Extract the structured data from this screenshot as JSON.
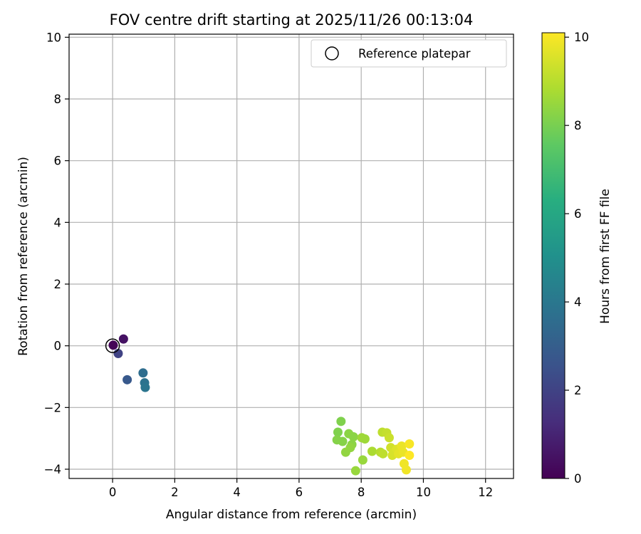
{
  "chart_data": {
    "type": "scatter",
    "title": "FOV centre drift starting at 2025/11/26 00:13:04",
    "xlabel": "Angular distance from reference (arcmin)",
    "ylabel": "Rotation from reference (arcmin)",
    "xlim": [
      -1.4,
      12.9
    ],
    "ylim": [
      -4.3,
      10.1
    ],
    "x_ticks": [
      0,
      2,
      4,
      6,
      8,
      10,
      12
    ],
    "y_ticks": [
      -4,
      -2,
      0,
      2,
      4,
      6,
      8,
      10
    ],
    "grid": true,
    "legend": {
      "position": "top-right",
      "entries": [
        "Reference platepar"
      ]
    },
    "reference_point": {
      "x": 0,
      "y": 0,
      "label": "Reference platepar"
    },
    "colorbar": {
      "label": "Hours from first FF file",
      "range": [
        0,
        10.1
      ],
      "ticks": [
        0,
        2,
        4,
        6,
        8,
        10
      ],
      "colormap": "viridis"
    },
    "points": [
      {
        "x": 0.02,
        "y": 0.02,
        "hours": 0.1
      },
      {
        "x": 0.35,
        "y": 0.22,
        "hours": 0.5
      },
      {
        "x": 0.18,
        "y": -0.25,
        "hours": 2.0
      },
      {
        "x": 0.47,
        "y": -1.1,
        "hours": 2.8
      },
      {
        "x": 0.98,
        "y": -0.88,
        "hours": 3.6
      },
      {
        "x": 1.03,
        "y": -1.2,
        "hours": 3.8
      },
      {
        "x": 1.05,
        "y": -1.35,
        "hours": 3.9
      },
      {
        "x": 7.35,
        "y": -2.45,
        "hours": 8.1
      },
      {
        "x": 7.25,
        "y": -2.8,
        "hours": 8.1
      },
      {
        "x": 7.22,
        "y": -3.05,
        "hours": 8.2
      },
      {
        "x": 7.4,
        "y": -3.1,
        "hours": 8.2
      },
      {
        "x": 7.6,
        "y": -2.85,
        "hours": 8.3
      },
      {
        "x": 7.75,
        "y": -2.95,
        "hours": 8.3
      },
      {
        "x": 7.7,
        "y": -3.2,
        "hours": 8.3
      },
      {
        "x": 7.65,
        "y": -3.3,
        "hours": 8.4
      },
      {
        "x": 7.5,
        "y": -3.45,
        "hours": 8.4
      },
      {
        "x": 7.82,
        "y": -4.05,
        "hours": 8.5
      },
      {
        "x": 8.05,
        "y": -3.7,
        "hours": 8.5
      },
      {
        "x": 8.02,
        "y": -2.98,
        "hours": 8.6
      },
      {
        "x": 8.12,
        "y": -3.02,
        "hours": 8.6
      },
      {
        "x": 8.35,
        "y": -3.42,
        "hours": 8.8
      },
      {
        "x": 8.62,
        "y": -3.45,
        "hours": 9.0
      },
      {
        "x": 8.68,
        "y": -2.8,
        "hours": 9.1
      },
      {
        "x": 8.7,
        "y": -3.5,
        "hours": 9.1
      },
      {
        "x": 8.82,
        "y": -2.82,
        "hours": 9.2
      },
      {
        "x": 8.9,
        "y": -2.98,
        "hours": 9.3
      },
      {
        "x": 8.95,
        "y": -3.3,
        "hours": 9.4
      },
      {
        "x": 9.05,
        "y": -3.45,
        "hours": 9.5
      },
      {
        "x": 9.0,
        "y": -3.55,
        "hours": 9.5
      },
      {
        "x": 9.15,
        "y": -3.35,
        "hours": 9.6
      },
      {
        "x": 9.2,
        "y": -3.5,
        "hours": 9.7
      },
      {
        "x": 9.3,
        "y": -3.25,
        "hours": 9.8
      },
      {
        "x": 9.35,
        "y": -3.45,
        "hours": 9.8
      },
      {
        "x": 9.38,
        "y": -3.82,
        "hours": 9.9
      },
      {
        "x": 9.45,
        "y": -4.02,
        "hours": 9.9
      },
      {
        "x": 9.55,
        "y": -3.18,
        "hours": 10.0
      },
      {
        "x": 9.55,
        "y": -3.55,
        "hours": 10.1
      }
    ]
  }
}
